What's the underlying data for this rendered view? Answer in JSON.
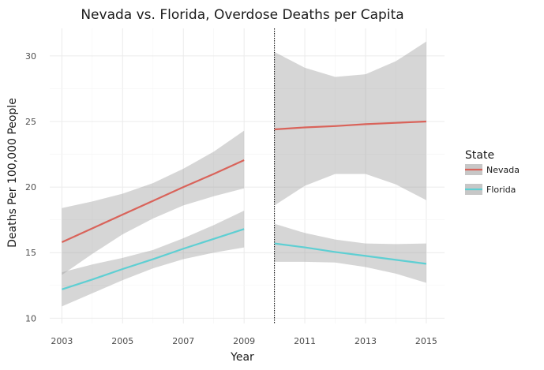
{
  "chart_data": {
    "type": "line",
    "title": "Nevada vs. Florida, Overdose Deaths per Capita",
    "xlabel": "Year",
    "ylabel": "Deaths Per 100,000 People",
    "xlim": [
      2002.6,
      2015.6
    ],
    "ylim": [
      9.6,
      32.1
    ],
    "x_ticks": [
      2003,
      2005,
      2007,
      2009,
      2011,
      2013,
      2015
    ],
    "y_ticks": [
      10,
      15,
      20,
      25,
      30
    ],
    "vline_x": 2010,
    "grid": true,
    "legend": {
      "title": "State",
      "placement": "right"
    },
    "series": [
      {
        "name": "Nevada",
        "color": "#D9635A",
        "segments": [
          {
            "x": [
              2003,
              2004,
              2005,
              2006,
              2007,
              2008,
              2009
            ],
            "y": [
              15.8,
              16.85,
              17.9,
              18.95,
              20.0,
              21.0,
              22.05
            ],
            "lower": [
              13.3,
              14.9,
              16.4,
              17.6,
              18.6,
              19.3,
              19.9
            ],
            "upper": [
              18.4,
              18.9,
              19.5,
              20.3,
              21.4,
              22.7,
              24.3
            ]
          },
          {
            "x": [
              2010,
              2011,
              2012,
              2013,
              2014,
              2015
            ],
            "y": [
              24.4,
              24.55,
              24.65,
              24.8,
              24.9,
              25.0
            ],
            "lower": [
              18.6,
              20.1,
              21.0,
              21.0,
              20.2,
              19.0
            ],
            "upper": [
              30.3,
              29.1,
              28.4,
              28.6,
              29.6,
              31.1
            ]
          }
        ]
      },
      {
        "name": "Florida",
        "color": "#5ECFD3",
        "segments": [
          {
            "x": [
              2003,
              2004,
              2005,
              2006,
              2007,
              2008,
              2009
            ],
            "y": [
              12.2,
              12.95,
              13.75,
              14.5,
              15.3,
              16.05,
              16.8
            ],
            "lower": [
              10.9,
              11.9,
              12.9,
              13.8,
              14.5,
              15.0,
              15.4
            ],
            "upper": [
              13.5,
              14.1,
              14.6,
              15.2,
              16.1,
              17.1,
              18.2
            ]
          },
          {
            "x": [
              2010,
              2011,
              2012,
              2013,
              2014,
              2015
            ],
            "y": [
              15.7,
              15.4,
              15.05,
              14.75,
              14.45,
              14.15
            ],
            "lower": [
              14.3,
              14.3,
              14.25,
              13.9,
              13.4,
              12.7
            ],
            "upper": [
              17.2,
              16.5,
              16.0,
              15.7,
              15.65,
              15.7
            ]
          }
        ]
      }
    ]
  }
}
